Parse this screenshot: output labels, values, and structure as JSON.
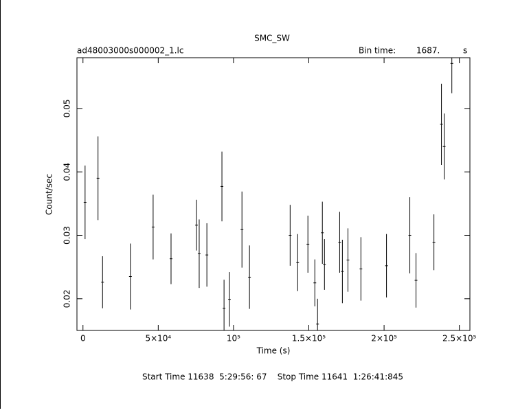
{
  "chart_data": {
    "type": "errorbar",
    "title": "SMC_SW",
    "file_label": "ad48003000s000002_1.lc",
    "bin_label": "Bin time:",
    "bin_value_label": "1687.",
    "bin_unit": "s",
    "xlabel": "Time (s)",
    "ylabel": "Count/sec",
    "footer": "Start Time 11638  5:29:56: 67    Stop Time 11641  1:26:41:845",
    "xlim": [
      -4000,
      257000
    ],
    "ylim": [
      0.015,
      0.058
    ],
    "xticks": [
      0,
      {
        "value": 50000,
        "label": "5×10⁴"
      },
      {
        "value": 100000,
        "label": "10⁵"
      },
      {
        "value": 150000,
        "label": "1.5×10⁵"
      },
      {
        "value": 200000,
        "label": "2×10⁵"
      },
      {
        "value": 250000,
        "label": "2.5×10⁵"
      }
    ],
    "yticks": [
      0.02,
      0.03,
      0.04,
      0.05
    ],
    "color": "#000000",
    "x": [
      1400,
      10000,
      13000,
      31500,
      46600,
      58500,
      75400,
      77200,
      82300,
      92300,
      93700,
      97300,
      105600,
      110600,
      137600,
      142600,
      149400,
      154000,
      155800,
      159000,
      160400,
      170500,
      172300,
      176000,
      184600,
      201600,
      217100,
      221200,
      233100,
      238100,
      239900,
      245000
    ],
    "values": [
      0.0352,
      0.039,
      0.0226,
      0.0235,
      0.0313,
      0.0263,
      0.0316,
      0.0271,
      0.0269,
      0.0377,
      0.0185,
      0.0199,
      0.0309,
      0.0234,
      0.03,
      0.0257,
      0.0286,
      0.0225,
      0.016,
      0.0304,
      0.0254,
      0.0289,
      0.0243,
      0.0261,
      0.0247,
      0.0252,
      0.03,
      0.0229,
      0.0289,
      0.0475,
      0.044,
      0.0571
    ],
    "errors": [
      0.0058,
      0.0066,
      0.0041,
      0.0052,
      0.0051,
      0.004,
      0.004,
      0.0054,
      0.005,
      0.0055,
      0.0045,
      0.0043,
      0.006,
      0.005,
      0.0048,
      0.0045,
      0.0045,
      0.0037,
      0.004,
      0.0049,
      0.004,
      0.0048,
      0.005,
      0.005,
      0.005,
      0.005,
      0.006,
      0.0043,
      0.0044,
      0.0064,
      0.0052,
      0.0047
    ]
  }
}
